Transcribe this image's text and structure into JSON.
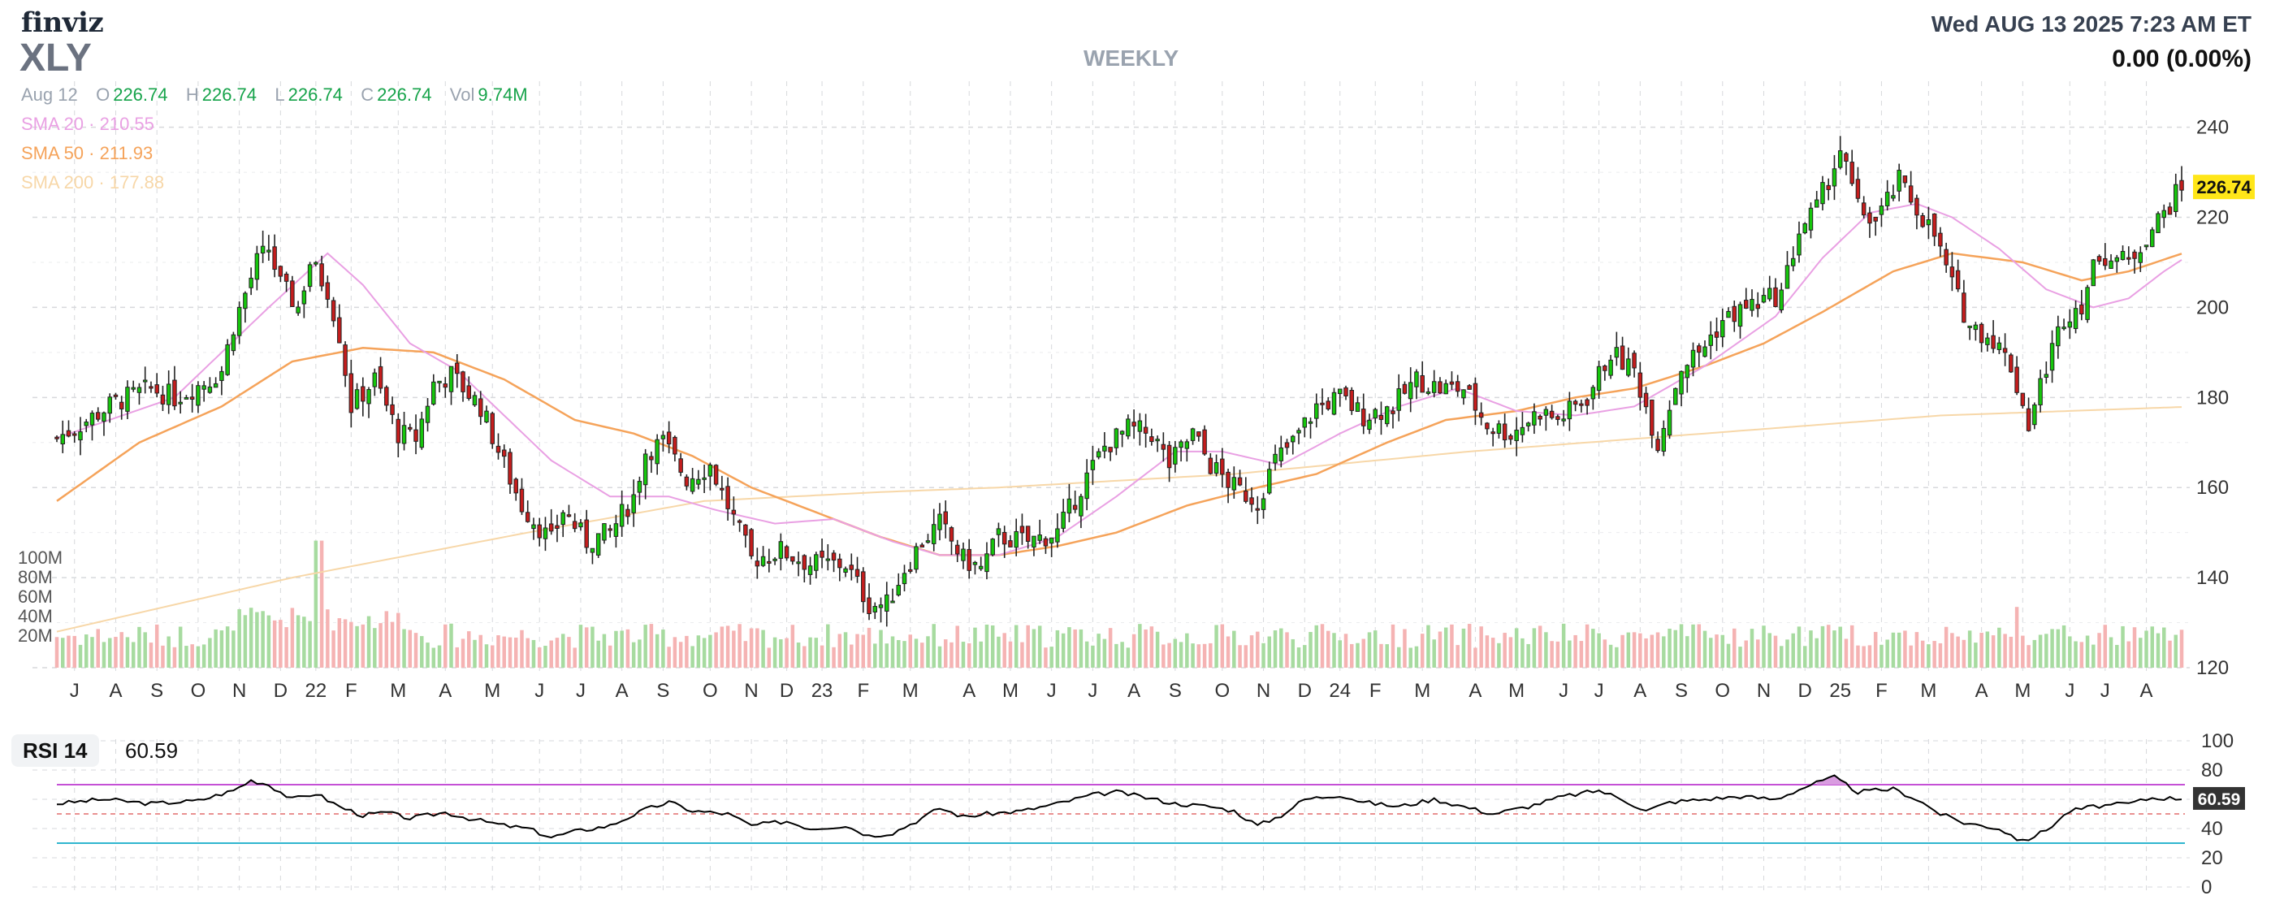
{
  "header": {
    "brand": "finviz",
    "ticker": "XLY",
    "timeframe": "WEEKLY",
    "datetime": "Wed AUG 13 2025 7:23 AM ET",
    "change": "0.00 (0.00%)"
  },
  "ohlc": {
    "date": "Aug 12",
    "o_label": "O",
    "o": "226.74",
    "h_label": "H",
    "h": "226.74",
    "l_label": "L",
    "l": "226.74",
    "c_label": "C",
    "c": "226.74",
    "vol_label": "Vol",
    "vol": "9.74M"
  },
  "sma": [
    {
      "label": "SMA 20",
      "value": "210.55",
      "color": "#e9a0e3"
    },
    {
      "label": "SMA 50",
      "value": "211.93",
      "color": "#f5a35a"
    },
    {
      "label": "SMA 200",
      "value": "177.88",
      "color": "#f7d7a8"
    }
  ],
  "colors": {
    "up": "#16c60c",
    "down": "#c51d1d",
    "vol_up": "#a7dba0",
    "vol_down": "#f5b3b3",
    "grid": "#d7d9dc",
    "rsi_line": "#000000",
    "rsi_upper": "#c550d6",
    "rsi_lower": "#2fb5cf",
    "rsi_mid": "#e26d6d",
    "last_price_bg": "#ffe619"
  },
  "rsi": {
    "label": "RSI 14",
    "value": "60.59"
  },
  "chart_data": {
    "type": "candlestick",
    "price_axis": {
      "ylim": [
        120,
        243
      ],
      "ticks": [
        120,
        140,
        160,
        180,
        200,
        220,
        240
      ]
    },
    "volume_axis": {
      "ticks": [
        "20M",
        "40M",
        "60M",
        "80M",
        "100M"
      ]
    },
    "rsi_axis": {
      "ylim": [
        0,
        100
      ],
      "ticks": [
        0,
        20,
        40,
        60,
        80,
        100
      ],
      "upper": 70,
      "lower": 30,
      "mid": 50
    },
    "last_price": "226.74",
    "last_rsi": "60.59",
    "x_labels": [
      "J",
      "A",
      "S",
      "O",
      "N",
      "D",
      "22",
      "F",
      "M",
      "A",
      "M",
      "J",
      "J",
      "A",
      "S",
      "O",
      "N",
      "D",
      "23",
      "F",
      "M",
      "A",
      "M",
      "J",
      "J",
      "A",
      "S",
      "O",
      "N",
      "D",
      "24",
      "F",
      "M",
      "A",
      "M",
      "J",
      "J",
      "A",
      "S",
      "O",
      "N",
      "D",
      "25",
      "F",
      "M",
      "A",
      "M",
      "J",
      "J",
      "A"
    ],
    "x_label_weeks": [
      3,
      10,
      17,
      24,
      31,
      38,
      44,
      50,
      58,
      66,
      74,
      82,
      89,
      96,
      103,
      111,
      118,
      124,
      130,
      137,
      145,
      155,
      162,
      169,
      176,
      183,
      190,
      198,
      205,
      212,
      218,
      224,
      232,
      241,
      248,
      256,
      262,
      269,
      276,
      283,
      290,
      297,
      303,
      310,
      318,
      327,
      334,
      342,
      348,
      355
    ],
    "weeks": 362,
    "anchors": [
      [
        0,
        171
      ],
      [
        4,
        174
      ],
      [
        10,
        179
      ],
      [
        16,
        182
      ],
      [
        20,
        180
      ],
      [
        26,
        184
      ],
      [
        28,
        186
      ],
      [
        30,
        196
      ],
      [
        34,
        210
      ],
      [
        36,
        213
      ],
      [
        38,
        205
      ],
      [
        41,
        200
      ],
      [
        43,
        210
      ],
      [
        46,
        204
      ],
      [
        48,
        194
      ],
      [
        50,
        178
      ],
      [
        54,
        184
      ],
      [
        56,
        178
      ],
      [
        58,
        172
      ],
      [
        61,
        171
      ],
      [
        64,
        183
      ],
      [
        67,
        185
      ],
      [
        72,
        178
      ],
      [
        76,
        165
      ],
      [
        79,
        156
      ],
      [
        84,
        148
      ],
      [
        86,
        155
      ],
      [
        90,
        148
      ],
      [
        94,
        150
      ],
      [
        98,
        158
      ],
      [
        100,
        168
      ],
      [
        103,
        170
      ],
      [
        107,
        162
      ],
      [
        111,
        165
      ],
      [
        114,
        156
      ],
      [
        118,
        144
      ],
      [
        123,
        146
      ],
      [
        128,
        143
      ],
      [
        134,
        143
      ],
      [
        138,
        134
      ],
      [
        141,
        134
      ],
      [
        144,
        142
      ],
      [
        147,
        148
      ],
      [
        150,
        152
      ],
      [
        154,
        144
      ],
      [
        157,
        142
      ],
      [
        160,
        149
      ],
      [
        165,
        148
      ],
      [
        170,
        150
      ],
      [
        174,
        160
      ],
      [
        178,
        169
      ],
      [
        182,
        173
      ],
      [
        186,
        172
      ],
      [
        189,
        165
      ],
      [
        193,
        172
      ],
      [
        196,
        165
      ],
      [
        200,
        160
      ],
      [
        204,
        157
      ],
      [
        207,
        166
      ],
      [
        210,
        170
      ],
      [
        214,
        178
      ],
      [
        218,
        180
      ],
      [
        222,
        176
      ],
      [
        227,
        178
      ],
      [
        231,
        184
      ],
      [
        235,
        182
      ],
      [
        239,
        182
      ],
      [
        243,
        174
      ],
      [
        247,
        172
      ],
      [
        252,
        177
      ],
      [
        255,
        175
      ],
      [
        260,
        180
      ],
      [
        264,
        190
      ],
      [
        268,
        186
      ],
      [
        272,
        170
      ],
      [
        276,
        187
      ],
      [
        279,
        190
      ],
      [
        283,
        197
      ],
      [
        287,
        200
      ],
      [
        293,
        203
      ],
      [
        296,
        217
      ],
      [
        299,
        222
      ],
      [
        303,
        235
      ],
      [
        306,
        222
      ],
      [
        309,
        219
      ],
      [
        313,
        228
      ],
      [
        316,
        222
      ],
      [
        319,
        216
      ],
      [
        322,
        205
      ],
      [
        325,
        196
      ],
      [
        329,
        193
      ],
      [
        332,
        187
      ],
      [
        335,
        174
      ],
      [
        338,
        187
      ],
      [
        341,
        198
      ],
      [
        344,
        201
      ],
      [
        347,
        212
      ],
      [
        352,
        210
      ],
      [
        355,
        216
      ],
      [
        358,
        221
      ],
      [
        361,
        226.74
      ]
    ],
    "sma20_anchors": [
      [
        0,
        171
      ],
      [
        20,
        180
      ],
      [
        36,
        200
      ],
      [
        46,
        212
      ],
      [
        52,
        205
      ],
      [
        60,
        192
      ],
      [
        68,
        186
      ],
      [
        76,
        176
      ],
      [
        84,
        166
      ],
      [
        94,
        158
      ],
      [
        104,
        158
      ],
      [
        112,
        155
      ],
      [
        122,
        152
      ],
      [
        132,
        153
      ],
      [
        142,
        148
      ],
      [
        150,
        145
      ],
      [
        160,
        145
      ],
      [
        170,
        149
      ],
      [
        180,
        158
      ],
      [
        190,
        168
      ],
      [
        198,
        168
      ],
      [
        208,
        165
      ],
      [
        218,
        172
      ],
      [
        228,
        178
      ],
      [
        238,
        182
      ],
      [
        248,
        177
      ],
      [
        258,
        176
      ],
      [
        268,
        178
      ],
      [
        280,
        187
      ],
      [
        292,
        198
      ],
      [
        300,
        211
      ],
      [
        308,
        221
      ],
      [
        316,
        223
      ],
      [
        322,
        220
      ],
      [
        330,
        213
      ],
      [
        338,
        204
      ],
      [
        346,
        200
      ],
      [
        352,
        202
      ],
      [
        358,
        208
      ],
      [
        361,
        210.55
      ]
    ],
    "sma50_anchors": [
      [
        0,
        157
      ],
      [
        14,
        170
      ],
      [
        28,
        178
      ],
      [
        40,
        188
      ],
      [
        52,
        191
      ],
      [
        64,
        190
      ],
      [
        76,
        184
      ],
      [
        88,
        175
      ],
      [
        98,
        172
      ],
      [
        108,
        167
      ],
      [
        118,
        160
      ],
      [
        128,
        155
      ],
      [
        140,
        149
      ],
      [
        150,
        145
      ],
      [
        160,
        145
      ],
      [
        170,
        147
      ],
      [
        180,
        150
      ],
      [
        192,
        156
      ],
      [
        204,
        160
      ],
      [
        214,
        163
      ],
      [
        226,
        170
      ],
      [
        236,
        175
      ],
      [
        248,
        177
      ],
      [
        258,
        180
      ],
      [
        268,
        182
      ],
      [
        280,
        187
      ],
      [
        290,
        192
      ],
      [
        300,
        199
      ],
      [
        312,
        208
      ],
      [
        322,
        212
      ],
      [
        334,
        210
      ],
      [
        344,
        206
      ],
      [
        352,
        208
      ],
      [
        361,
        211.93
      ]
    ],
    "sma200_anchors": [
      [
        0,
        128
      ],
      [
        40,
        140
      ],
      [
        80,
        150
      ],
      [
        110,
        157
      ],
      [
        140,
        159
      ],
      [
        160,
        160
      ],
      [
        200,
        163
      ],
      [
        240,
        168
      ],
      [
        280,
        172
      ],
      [
        320,
        176
      ],
      [
        361,
        177.88
      ]
    ],
    "rsi_anchors": [
      [
        0,
        57
      ],
      [
        8,
        60
      ],
      [
        16,
        57
      ],
      [
        24,
        59
      ],
      [
        30,
        66
      ],
      [
        33,
        73
      ],
      [
        36,
        70
      ],
      [
        40,
        60
      ],
      [
        44,
        64
      ],
      [
        48,
        55
      ],
      [
        52,
        49
      ],
      [
        56,
        51
      ],
      [
        60,
        47
      ],
      [
        66,
        51
      ],
      [
        70,
        47
      ],
      [
        76,
        42
      ],
      [
        80,
        40
      ],
      [
        84,
        34
      ],
      [
        88,
        38
      ],
      [
        94,
        42
      ],
      [
        100,
        53
      ],
      [
        104,
        58
      ],
      [
        108,
        52
      ],
      [
        114,
        50
      ],
      [
        118,
        42
      ],
      [
        124,
        45
      ],
      [
        128,
        40
      ],
      [
        134,
        42
      ],
      [
        138,
        35
      ],
      [
        142,
        37
      ],
      [
        146,
        45
      ],
      [
        150,
        54
      ],
      [
        154,
        48
      ],
      [
        158,
        50
      ],
      [
        164,
        52
      ],
      [
        170,
        57
      ],
      [
        176,
        63
      ],
      [
        180,
        65
      ],
      [
        184,
        62
      ],
      [
        190,
        57
      ],
      [
        196,
        55
      ],
      [
        200,
        52
      ],
      [
        204,
        42
      ],
      [
        208,
        49
      ],
      [
        212,
        60
      ],
      [
        218,
        63
      ],
      [
        222,
        58
      ],
      [
        228,
        55
      ],
      [
        234,
        60
      ],
      [
        240,
        54
      ],
      [
        244,
        50
      ],
      [
        250,
        55
      ],
      [
        256,
        62
      ],
      [
        262,
        66
      ],
      [
        266,
        60
      ],
      [
        270,
        52
      ],
      [
        274,
        58
      ],
      [
        280,
        60
      ],
      [
        286,
        62
      ],
      [
        292,
        60
      ],
      [
        298,
        70
      ],
      [
        302,
        75
      ],
      [
        306,
        65
      ],
      [
        312,
        67
      ],
      [
        316,
        60
      ],
      [
        320,
        50
      ],
      [
        324,
        44
      ],
      [
        330,
        40
      ],
      [
        334,
        31
      ],
      [
        338,
        39
      ],
      [
        342,
        52
      ],
      [
        346,
        55
      ],
      [
        352,
        57
      ],
      [
        356,
        61
      ],
      [
        361,
        60.59
      ]
    ]
  }
}
